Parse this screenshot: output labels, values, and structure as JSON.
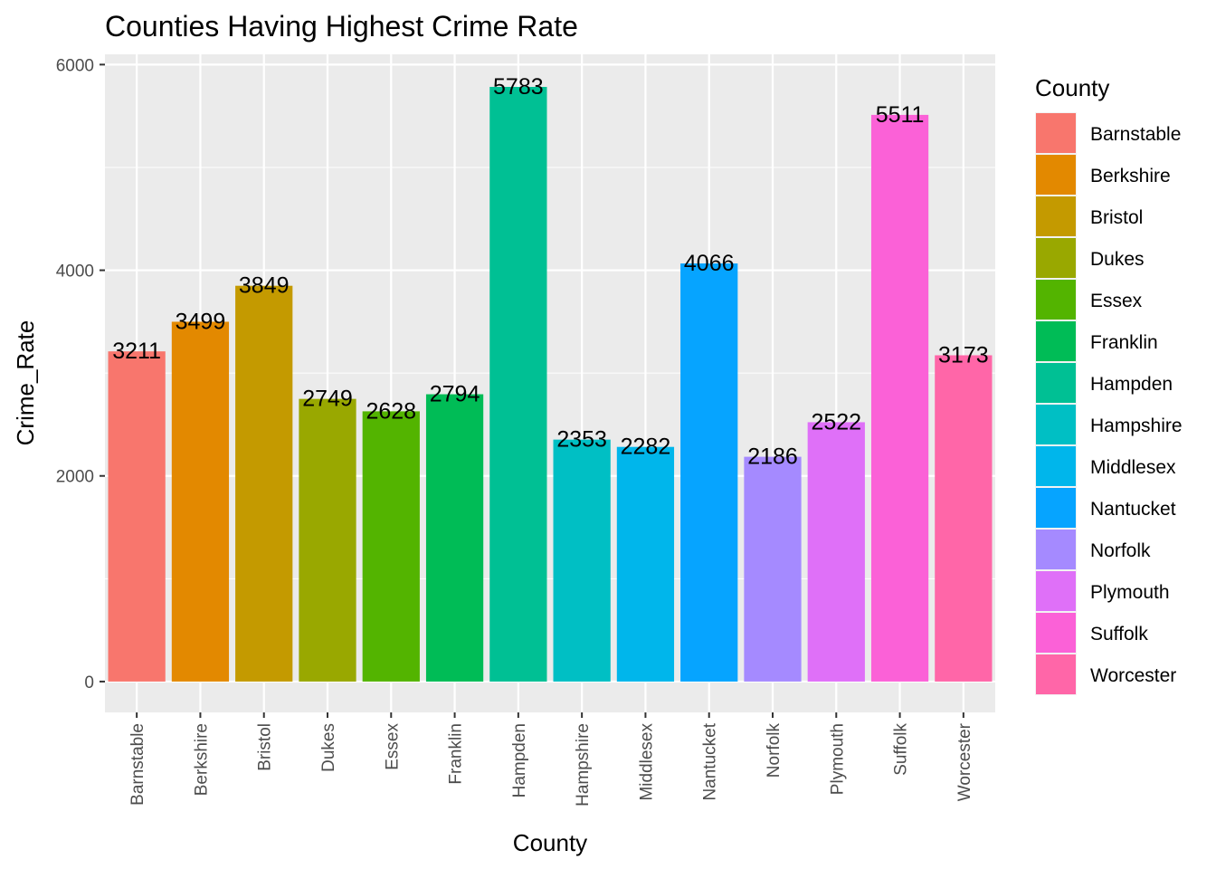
{
  "chart_data": {
    "type": "bar",
    "title": "Counties Having Highest Crime Rate",
    "xlabel": "County",
    "ylabel": "Crime_Rate",
    "ylim": [
      -300,
      6100
    ],
    "yticks": [
      0,
      2000,
      4000,
      6000
    ],
    "ytick_labels": [
      "0",
      "2000",
      "4000",
      "6000"
    ],
    "categories": [
      "Barnstable",
      "Berkshire",
      "Bristol",
      "Dukes",
      "Essex",
      "Franklin",
      "Hampden",
      "Hampshire",
      "Middlesex",
      "Nantucket",
      "Norfolk",
      "Plymouth",
      "Suffolk",
      "Worcester"
    ],
    "values": [
      3211,
      3499,
      3849,
      2749,
      2628,
      2794,
      5783,
      2353,
      2282,
      4066,
      2186,
      2522,
      5511,
      3173
    ],
    "colors": [
      "#F8766D",
      "#E38900",
      "#C49A00",
      "#99A800",
      "#53B400",
      "#00BC56",
      "#00C094",
      "#00BFC4",
      "#00B6EB",
      "#06A4FF",
      "#A58AFF",
      "#DF70F8",
      "#FB61D7",
      "#FF66A8"
    ],
    "legend": {
      "title": "County",
      "position": "right"
    },
    "grid": true,
    "panel_background": "#EBEBEB"
  }
}
